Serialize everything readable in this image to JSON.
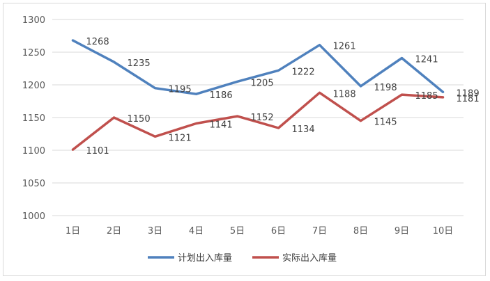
{
  "chart_data": {
    "type": "line",
    "categories": [
      "1日",
      "2日",
      "3日",
      "4日",
      "5日",
      "6日",
      "7日",
      "8日",
      "9日",
      "10日"
    ],
    "series": [
      {
        "name": "计划出入库量",
        "color": "#4F81BD",
        "values": [
          1268,
          1235,
          1195,
          1186,
          1205,
          1222,
          1261,
          1198,
          1241,
          1189
        ]
      },
      {
        "name": "实际出入库量",
        "color": "#C0504D",
        "values": [
          1101,
          1150,
          1121,
          1141,
          1152,
          1134,
          1188,
          1145,
          1185,
          1181
        ]
      }
    ],
    "y_ticks": [
      "1000",
      "1050",
      "1100",
      "1150",
      "1200",
      "1250",
      "1300"
    ],
    "ylim": [
      1000,
      1300
    ],
    "grid": true,
    "legend_position": "bottom"
  }
}
